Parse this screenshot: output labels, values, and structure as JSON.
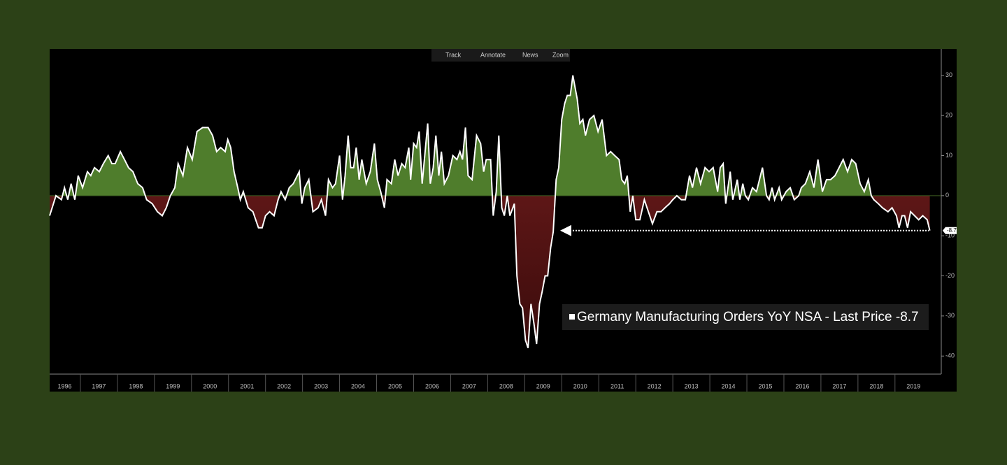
{
  "chart_data": {
    "type": "area",
    "toolbar": [
      "Track",
      "Annotate",
      "News",
      "Zoom"
    ],
    "series": [
      {
        "name": "Germany Manufacturing Orders YoY NSA - Last Price -8.7",
        "color": "#ffffff",
        "positive_color": "#4f7d2c",
        "negative_color": "#7a2020",
        "x": [
          1996.17,
          1996.34,
          1996.49,
          1996.57,
          1996.66,
          1996.75,
          1996.85,
          1996.94,
          1997.06,
          1997.19,
          1997.28,
          1997.38,
          1997.51,
          1997.62,
          1997.75,
          1997.85,
          1997.94,
          1998.08,
          1998.19,
          1998.3,
          1998.42,
          1998.55,
          1998.68,
          1998.79,
          1998.94,
          1999.08,
          1999.21,
          1999.32,
          1999.43,
          1999.55,
          1999.64,
          1999.77,
          1999.89,
          2000.02,
          2000.15,
          2000.3,
          2000.45,
          2000.57,
          2000.68,
          2000.79,
          2000.91,
          2000.98,
          2001.06,
          2001.15,
          2001.25,
          2001.32,
          2001.4,
          2001.53,
          2001.66,
          2001.81,
          2001.91,
          2002.0,
          2002.11,
          2002.23,
          2002.34,
          2002.42,
          2002.53,
          2002.64,
          2002.75,
          2002.91,
          2002.98,
          2003.06,
          2003.17,
          2003.28,
          2003.42,
          2003.51,
          2003.62,
          2003.7,
          2003.81,
          2003.89,
          2004.0,
          2004.08,
          2004.15,
          2004.23,
          2004.3,
          2004.38,
          2004.45,
          2004.53,
          2004.6,
          2004.72,
          2004.83,
          2004.94,
          2005.02,
          2005.11,
          2005.21,
          2005.28,
          2005.4,
          2005.49,
          2005.58,
          2005.68,
          2005.77,
          2005.87,
          2005.92,
          2006.0,
          2006.08,
          2006.15,
          2006.23,
          2006.3,
          2006.38,
          2006.45,
          2006.53,
          2006.6,
          2006.68,
          2006.75,
          2006.83,
          2006.94,
          2007.06,
          2007.17,
          2007.25,
          2007.32,
          2007.4,
          2007.47,
          2007.58,
          2007.7,
          2007.81,
          2007.89,
          2007.96,
          2008.08,
          2008.15,
          2008.23,
          2008.3,
          2008.38,
          2008.45,
          2008.53,
          2008.6,
          2008.72,
          2008.79,
          2008.87,
          2008.94,
          2009.02,
          2009.09,
          2009.17,
          2009.25,
          2009.32,
          2009.4,
          2009.47,
          2009.55,
          2009.62,
          2009.7,
          2009.77,
          2009.85,
          2009.92,
          2010.0,
          2010.08,
          2010.15,
          2010.23,
          2010.3,
          2010.42,
          2010.49,
          2010.57,
          2010.64,
          2010.75,
          2010.87,
          2010.98,
          2011.09,
          2011.21,
          2011.32,
          2011.43,
          2011.55,
          2011.62,
          2011.7,
          2011.77,
          2011.85,
          2011.92,
          2012.0,
          2012.11,
          2012.23,
          2012.34,
          2012.45,
          2012.57,
          2012.68,
          2012.79,
          2012.91,
          2013.0,
          2013.11,
          2013.23,
          2013.34,
          2013.45,
          2013.53,
          2013.64,
          2013.75,
          2013.87,
          2013.98,
          2014.09,
          2014.21,
          2014.28,
          2014.36,
          2014.43,
          2014.55,
          2014.62,
          2014.74,
          2014.81,
          2014.89,
          2014.96,
          2015.04,
          2015.15,
          2015.26,
          2015.42,
          2015.53,
          2015.6,
          2015.68,
          2015.75,
          2015.87,
          2015.94,
          2016.06,
          2016.17,
          2016.28,
          2016.4,
          2016.47,
          2016.58,
          2016.7,
          2016.81,
          2016.92,
          2017.04,
          2017.15,
          2017.26,
          2017.38,
          2017.49,
          2017.6,
          2017.72,
          2017.83,
          2017.94,
          2018.06,
          2018.17,
          2018.28,
          2018.36,
          2018.43,
          2018.55,
          2018.66,
          2018.81,
          2018.92,
          2019.04,
          2019.11,
          2019.19,
          2019.26,
          2019.34,
          2019.42,
          2019.53,
          2019.64,
          2019.75,
          2019.87,
          2019.94
        ],
        "values": [
          -5,
          0,
          -1,
          2,
          -1,
          3,
          -1,
          5,
          2,
          6,
          5,
          7,
          6,
          8,
          10,
          8,
          8,
          11,
          9,
          7,
          6,
          3,
          2,
          -1,
          -2,
          -4,
          -5,
          -3,
          0,
          2,
          8,
          5,
          12,
          9,
          16,
          17,
          17,
          15,
          11,
          12,
          11,
          14,
          12,
          6,
          2,
          -1,
          1,
          -3,
          -4,
          -8,
          -8,
          -5,
          -4,
          -5,
          -1,
          1,
          -1,
          2,
          3,
          6,
          -2,
          2,
          4,
          -4,
          -3,
          -1,
          -5,
          4,
          2,
          3,
          10,
          -1,
          5,
          15,
          7,
          7,
          12,
          4,
          9,
          3,
          6,
          13,
          4,
          1,
          -3,
          4,
          3,
          9,
          5,
          8,
          7,
          12,
          4,
          13,
          12,
          16,
          3,
          10,
          18,
          3,
          7,
          15,
          5,
          11,
          3,
          5,
          10,
          9,
          11,
          9,
          17,
          5,
          4,
          15,
          13,
          6,
          9,
          9,
          -5,
          1,
          15,
          -3,
          -5,
          0,
          -5,
          -2,
          -20,
          -27,
          -28,
          -36,
          -38,
          -27,
          -32,
          -37,
          -27,
          -24,
          -20,
          -20,
          -13,
          -9,
          4,
          7,
          19,
          23,
          25,
          25,
          30,
          24,
          18,
          19,
          15,
          19,
          20,
          16,
          19,
          10,
          11,
          10,
          9,
          4,
          3,
          5,
          -4,
          0,
          -6,
          -6,
          -1,
          -4,
          -7,
          -4,
          -4,
          -3,
          -2,
          -1,
          0,
          -1,
          -1,
          5,
          2,
          7,
          3,
          7,
          6,
          7,
          1,
          7,
          8,
          -2,
          6,
          -1,
          4,
          -1,
          3,
          0,
          -1,
          2,
          1,
          7,
          0,
          -1,
          2,
          -1,
          2,
          -1,
          1,
          2,
          -1,
          0,
          2,
          3,
          6,
          2,
          9,
          1,
          4,
          4,
          5,
          7,
          9,
          6,
          9,
          8,
          3,
          1,
          4,
          0,
          -1,
          -2,
          -3,
          -4,
          -3,
          -5,
          -8,
          -5,
          -5,
          -8,
          -4,
          -5,
          -6,
          -5,
          -6,
          -8.7
        ]
      }
    ],
    "last_price": -8.7,
    "xlim": [
      1996.17,
      2020.25
    ],
    "xticks": [
      1996,
      1997,
      1998,
      1999,
      2000,
      2001,
      2002,
      2003,
      2004,
      2005,
      2006,
      2007,
      2008,
      2009,
      2010,
      2011,
      2012,
      2013,
      2014,
      2015,
      2016,
      2017,
      2018,
      2019
    ],
    "ylim": [
      -44.5,
      36.6
    ],
    "yticks": [
      -40,
      -30,
      -20,
      -10,
      0,
      10,
      20,
      30
    ]
  }
}
